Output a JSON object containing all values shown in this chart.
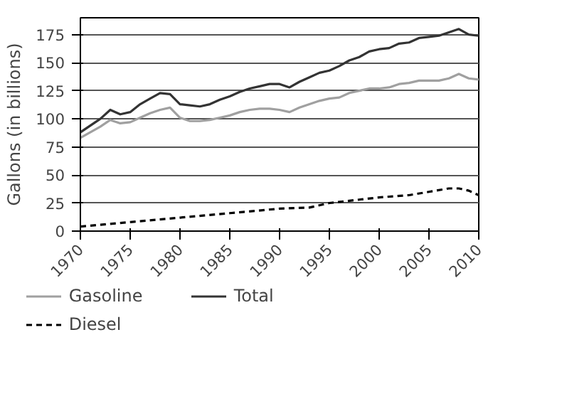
{
  "chart_data": {
    "type": "line",
    "ylabel": "Gallons (in billions)",
    "x": [
      1970,
      1972,
      1973,
      1974,
      1975,
      1976,
      1977,
      1978,
      1979,
      1980,
      1981,
      1982,
      1983,
      1984,
      1985,
      1986,
      1987,
      1988,
      1989,
      1990,
      1991,
      1992,
      1993,
      1994,
      1995,
      1996,
      1997,
      1998,
      1999,
      2000,
      2001,
      2002,
      2003,
      2004,
      2005,
      2006,
      2007,
      2008,
      2009,
      2010
    ],
    "xlim": [
      1970,
      2010
    ],
    "xticks": [
      1970,
      1975,
      1980,
      1985,
      1990,
      1995,
      2000,
      2005,
      2010
    ],
    "ylim": [
      0,
      190
    ],
    "yticks": [
      0,
      25,
      50,
      75,
      100,
      125,
      150,
      175
    ],
    "grid": "y",
    "legend": "bottom",
    "series": [
      {
        "name": "Gasoline",
        "color": "#a0a0a0",
        "line_style": "solid",
        "values": [
          83,
          93,
          99,
          96,
          97,
          101,
          105,
          108,
          110,
          101,
          98,
          98,
          99,
          101,
          103,
          106,
          108,
          109,
          109,
          108,
          106,
          110,
          113,
          116,
          118,
          119,
          123,
          125,
          127,
          127,
          128,
          131,
          132,
          134,
          134,
          134,
          136,
          140,
          136,
          135
        ]
      },
      {
        "name": "Total",
        "color": "#333333",
        "line_style": "solid",
        "values": [
          88,
          100,
          108,
          104,
          106,
          113,
          118,
          123,
          122,
          113,
          112,
          111,
          113,
          117,
          120,
          124,
          127,
          129,
          131,
          131,
          128,
          133,
          137,
          141,
          143,
          147,
          152,
          155,
          160,
          162,
          163,
          167,
          168,
          172,
          173,
          174,
          177,
          180,
          175,
          174
        ]
      },
      {
        "name": "Diesel",
        "color": "#000000",
        "line_style": "dashed",
        "x": [
          1970,
          1975,
          1980,
          1985,
          1990,
          1993,
          1995,
          1997,
          2000,
          2003,
          2005,
          2007,
          2008,
          2009,
          2010
        ],
        "values": [
          4,
          8,
          12,
          16,
          20,
          21,
          25,
          27,
          30,
          32,
          35,
          38,
          38,
          36,
          32
        ]
      }
    ]
  }
}
